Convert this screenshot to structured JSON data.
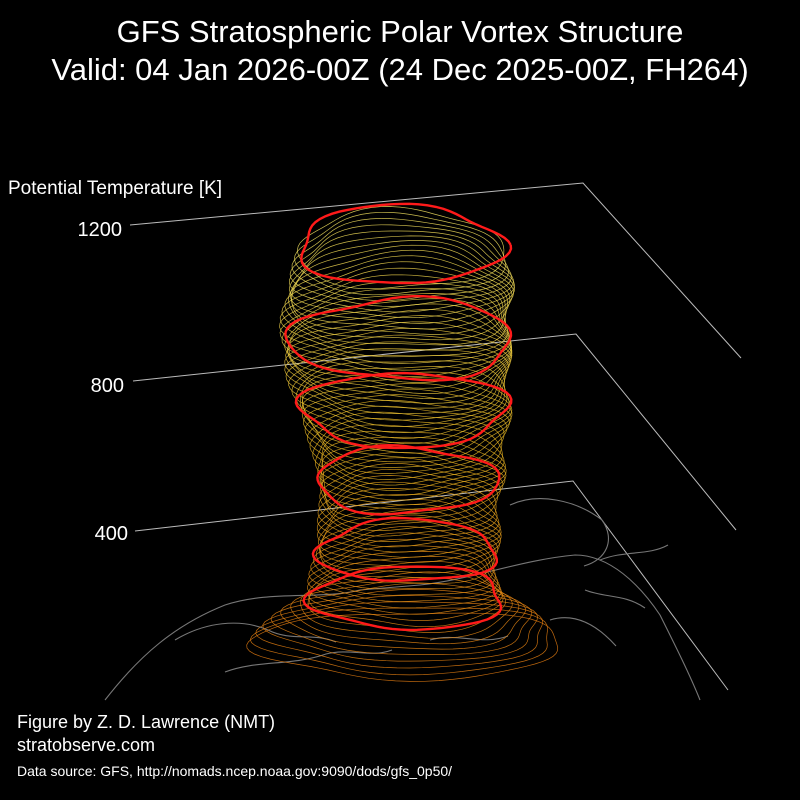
{
  "title": "GFS Stratospheric Polar Vortex Structure",
  "subtitle": "Valid: 04 Jan 2026-00Z  (24 Dec 2025-00Z, FH264)",
  "credits": {
    "author": "Figure by Z. D. Lawrence (NMT)",
    "website": "stratobserve.com",
    "source": "Data source: GFS, http://nomads.ncep.noaa.gov:9090/dods/gfs_0p50/"
  },
  "colors": {
    "background": "#000000",
    "axis": "#bbbbbb",
    "red_contour": "#ff1a1a",
    "low_level": "#e07a10",
    "mid_level": "#e0b020",
    "high_level": "#f0e060",
    "coastline": "#777777"
  },
  "chart_data": {
    "type": "3d-surface",
    "z_axis_label": "Potential Temperature [K]",
    "z_ticks": [
      "400",
      "800",
      "1200"
    ],
    "z_tick_values": [
      400,
      800,
      1200
    ],
    "zlim": [
      350,
      1200
    ],
    "highlighted_levels_K": [
      450,
      550,
      700,
      850,
      1000,
      1200
    ],
    "vortex_levels_K": [
      350,
      400,
      450,
      500,
      550,
      600,
      650,
      700,
      750,
      800,
      850,
      900,
      950,
      1000,
      1050,
      1100,
      1150,
      1200
    ],
    "grid": true
  }
}
